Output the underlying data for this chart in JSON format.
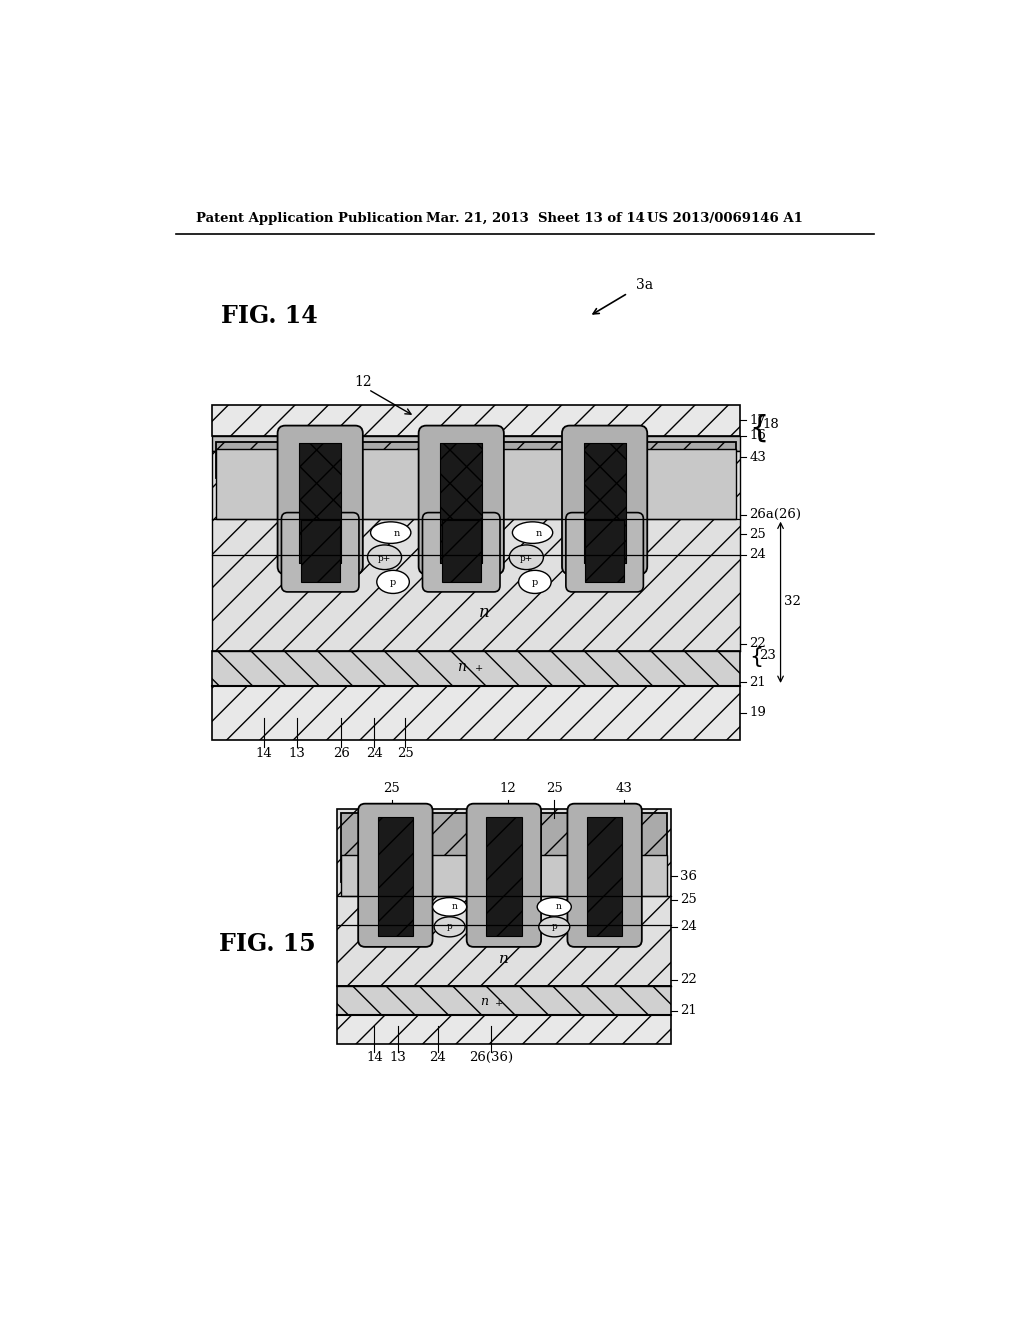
{
  "header_left": "Patent Application Publication",
  "header_mid": "Mar. 21, 2013  Sheet 13 of 14",
  "header_right": "US 2013/0069146 A1",
  "fig14_label": "FIG. 14",
  "fig15_label": "FIG. 15",
  "bg_color": "#ffffff"
}
